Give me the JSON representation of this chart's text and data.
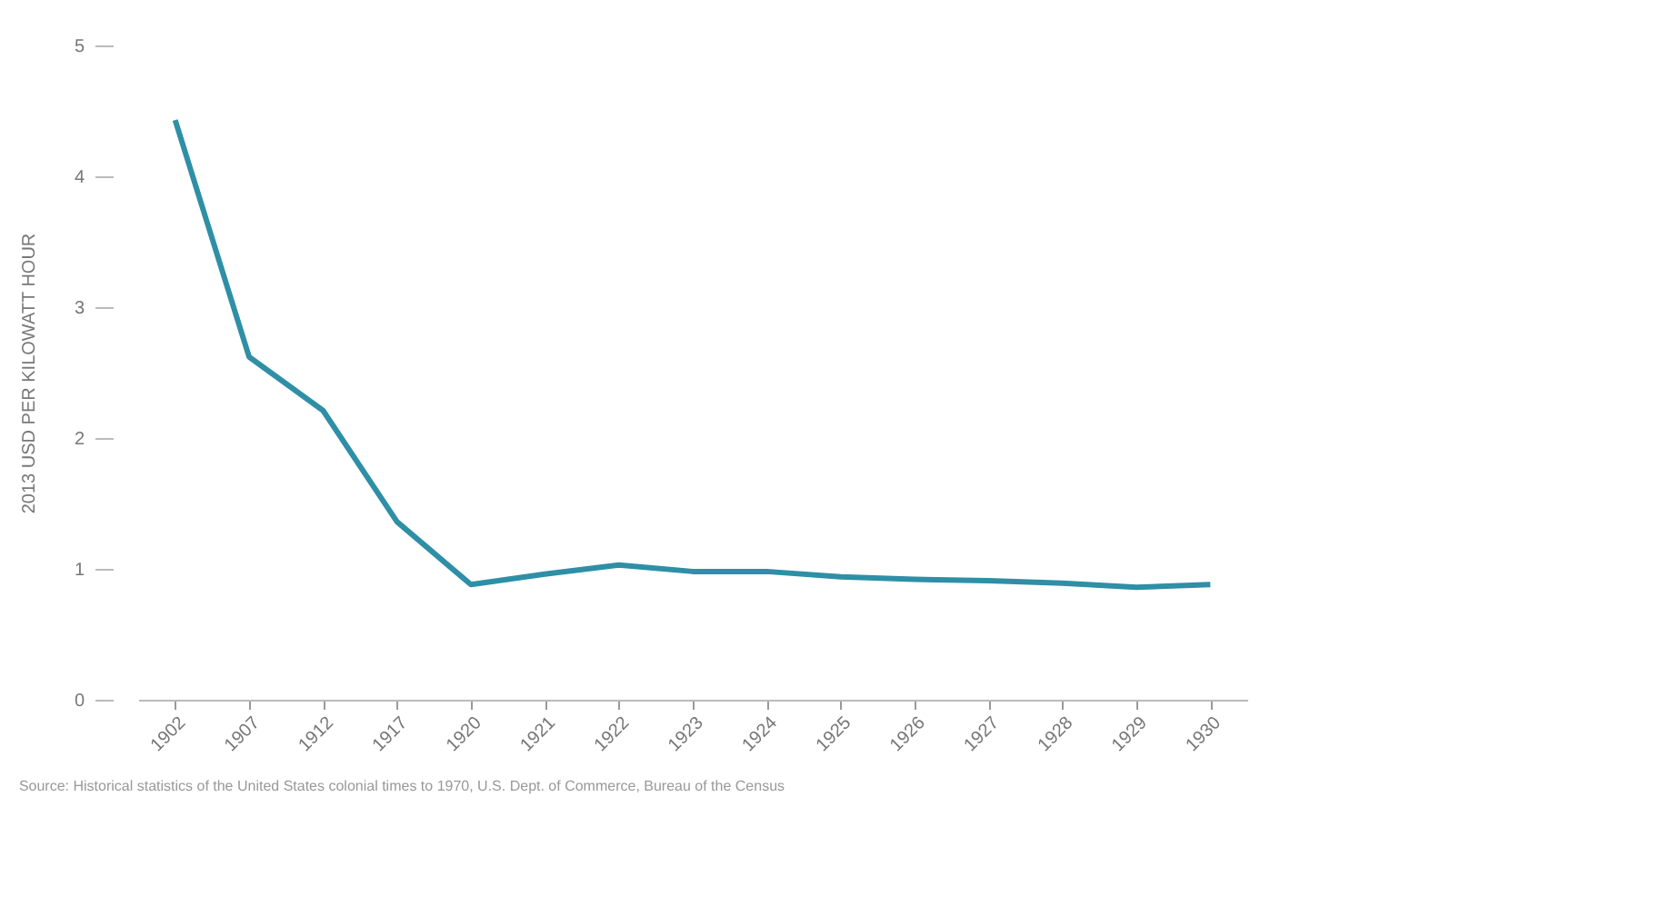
{
  "chart_data": {
    "type": "line",
    "ylabel": "2013 USD PER KILOWATT HOUR",
    "categories": [
      "1902",
      "1907",
      "1912",
      "1917",
      "1920",
      "1921",
      "1922",
      "1923",
      "1924",
      "1925",
      "1926",
      "1927",
      "1928",
      "1929",
      "1930"
    ],
    "series": [
      {
        "color": "#2e8fa6",
        "values": [
          4.43,
          2.62,
          2.21,
          1.36,
          0.88,
          0.96,
          1.03,
          0.98,
          0.98,
          0.94,
          0.92,
          0.91,
          0.89,
          0.86,
          0.88
        ]
      }
    ],
    "ylim": [
      0,
      5
    ],
    "yticks": [
      0,
      1,
      2,
      3,
      4,
      5
    ],
    "grid": false,
    "marker": "none",
    "line_style": "solid",
    "annotations": [
      "Source: Historical statistics of the United States colonial times to 1970, U.S. Dept. of Commerce, Bureau of the Census"
    ]
  }
}
